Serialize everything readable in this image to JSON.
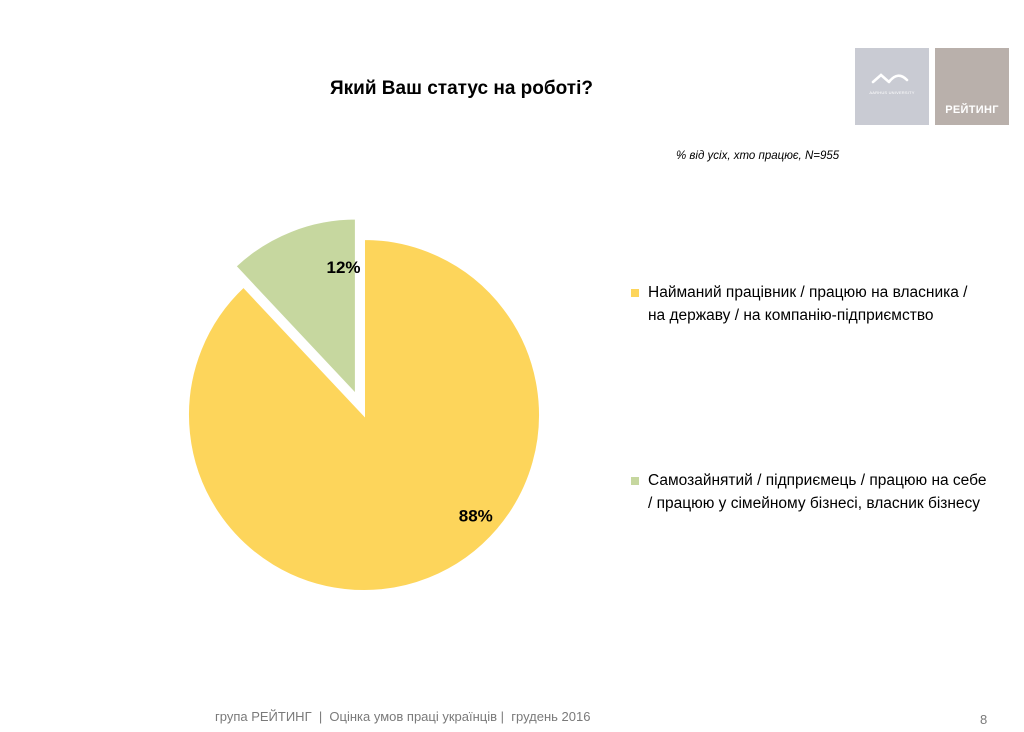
{
  "colors": {
    "slice_employed": "#fdd55b",
    "slice_self": "#c6d79f",
    "gap": "#ffffff"
  },
  "logos": {
    "university_text": "AARHUS UNIVERSITY",
    "rating_text": "РЕЙТИНГ"
  },
  "chart_data": {
    "type": "pie",
    "title": "Який Ваш статус на роботі?",
    "subtitle": "% від усіх, хто працює, N=955",
    "slices": [
      {
        "name": "Найманий працівник / працюю на власника / на державу / на компанію-підприємство",
        "value": 88,
        "label": "88%",
        "color": "#fdd55b",
        "exploded": false
      },
      {
        "name": "Самозайнятий / підприємець / працюю на себе / працюю у сімейному бізнесі, власник бізнесу",
        "value": 12,
        "label": "12%",
        "color": "#c6d79f",
        "exploded": true
      }
    ],
    "legend_position": "right"
  },
  "footer": {
    "text": "група РЕЙТИНГ  |  Оцінка умов праці українців |  грудень 2016",
    "page_number": "8"
  }
}
